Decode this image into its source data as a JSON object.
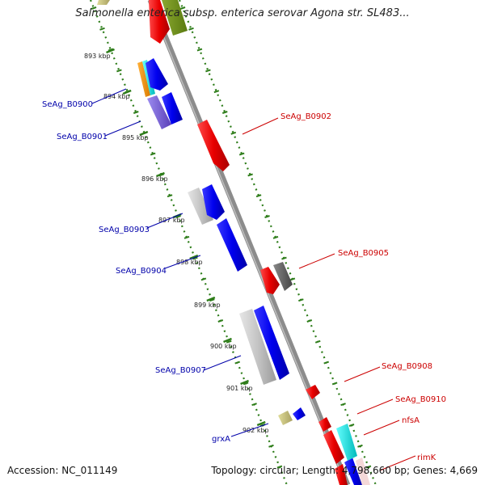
{
  "title": "Salmonella enterica subsp. enterica serovar Agona str. SL483...",
  "footer": {
    "accession": "Accession: NC_011149",
    "topology": "Topology: circular; Length: 4,798,660 bp; Genes: 4,669"
  },
  "colors": {
    "backbone": "#8c8c8c",
    "tick": "#2e7d1a",
    "forward_label": "#cc0000",
    "reverse_label": "#0000aa"
  },
  "ticks": [
    {
      "label": "893 kbp"
    },
    {
      "label": "894 kbp"
    },
    {
      "label": "895 kbp"
    },
    {
      "label": "896 kbp"
    },
    {
      "label": "897 kbp"
    },
    {
      "label": "898 kbp"
    },
    {
      "label": "899 kbp"
    },
    {
      "label": "900 kbp"
    },
    {
      "label": "901 kbp"
    },
    {
      "label": "902 kbp"
    }
  ],
  "gene_labels": {
    "reverse": [
      {
        "name": "SeAg_B0900"
      },
      {
        "name": "SeAg_B0901"
      },
      {
        "name": "SeAg_B0903"
      },
      {
        "name": "SeAg_B0904"
      },
      {
        "name": "SeAg_B0907"
      },
      {
        "name": "grxA"
      }
    ],
    "forward": [
      {
        "name": "SeAg_B0902"
      },
      {
        "name": "SeAg_B0905"
      },
      {
        "name": "SeAg_B0908"
      },
      {
        "name": "SeAg_B0910"
      },
      {
        "name": "nfsA"
      },
      {
        "name": "rimK"
      }
    ]
  }
}
